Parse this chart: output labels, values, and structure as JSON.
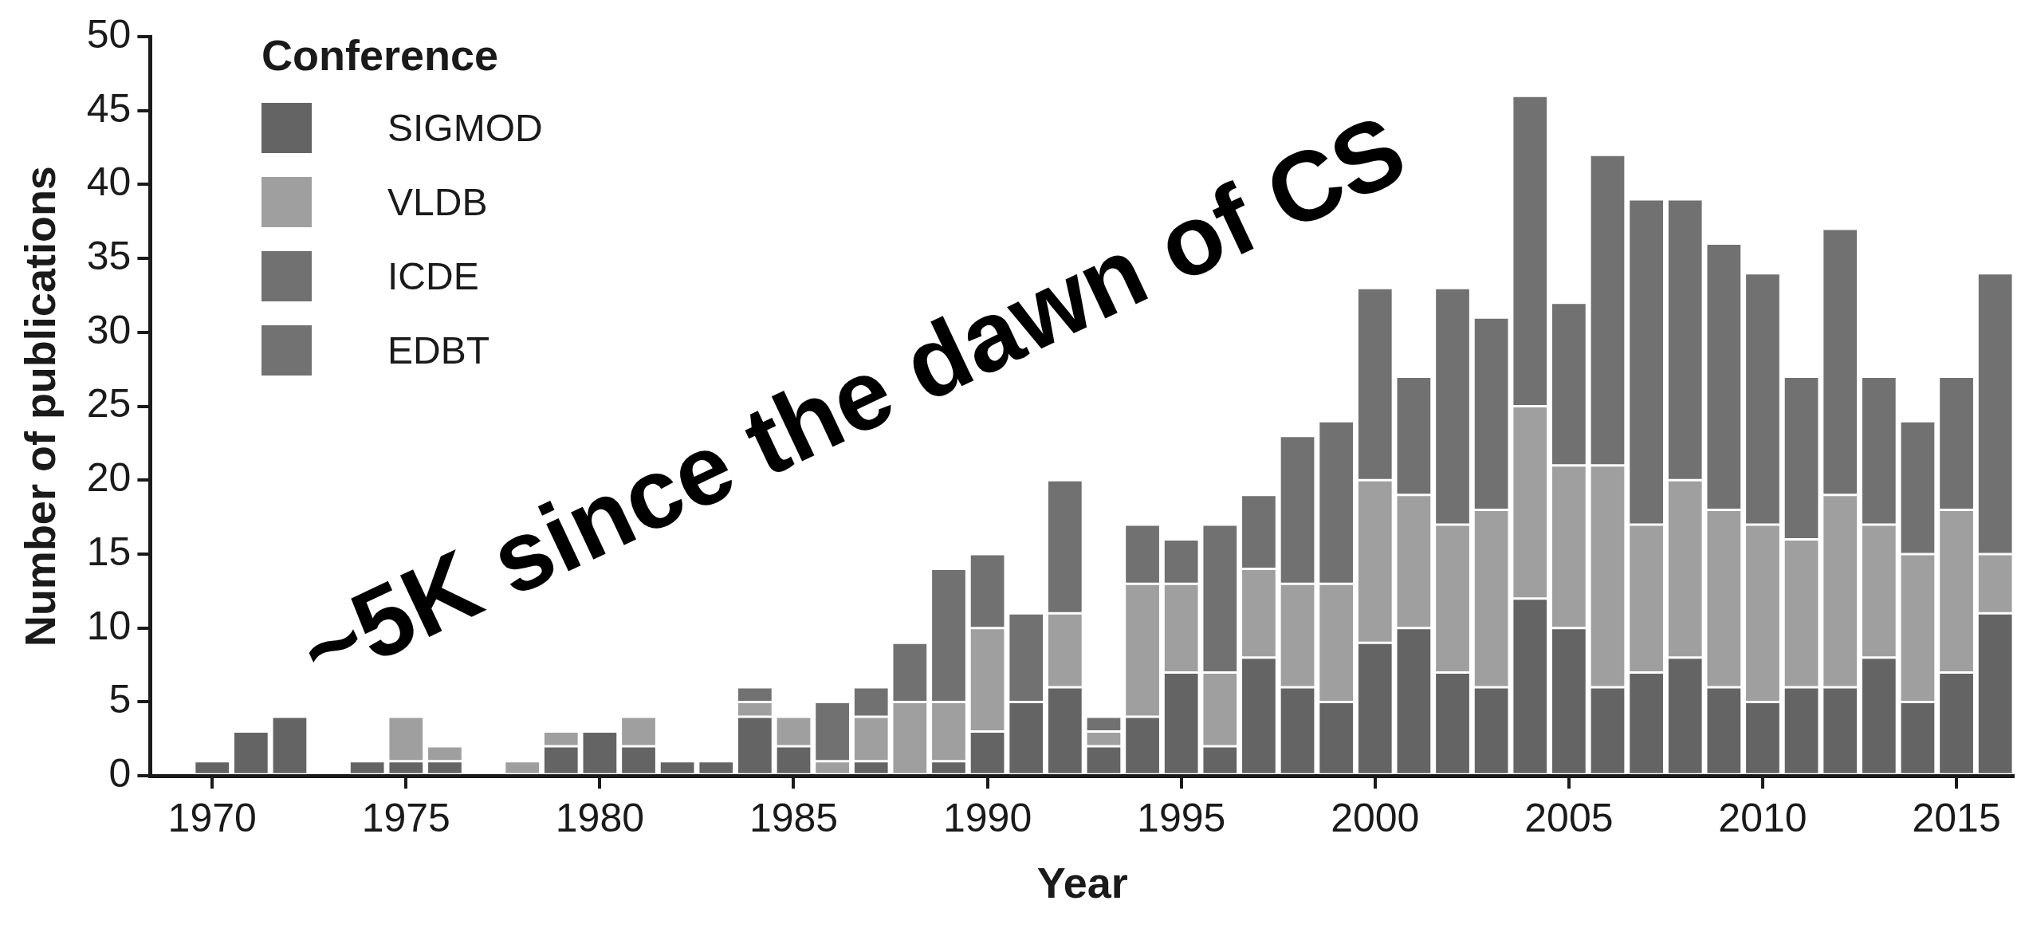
{
  "chart_data": {
    "type": "bar",
    "stacked": true,
    "xlabel": "Year",
    "ylabel": "Number of publications",
    "legend_title": "Conference",
    "legend": "top left",
    "grid": false,
    "x": [
      1970,
      1971,
      1972,
      1973,
      1974,
      1975,
      1976,
      1977,
      1978,
      1979,
      1980,
      1981,
      1982,
      1983,
      1984,
      1985,
      1986,
      1987,
      1988,
      1989,
      1990,
      1991,
      1992,
      1993,
      1994,
      1995,
      1996,
      1997,
      1998,
      1999,
      2000,
      2001,
      2002,
      2003,
      2004,
      2005,
      2006,
      2007,
      2008,
      2009,
      2010,
      2011,
      2012,
      2013,
      2014,
      2015,
      2016
    ],
    "xlim": [
      1968.4,
      2016.5
    ],
    "xticks": [
      1970,
      1975,
      1980,
      1985,
      1990,
      1995,
      2000,
      2005,
      2010,
      2015
    ],
    "ylim": [
      0,
      50
    ],
    "yticks": [
      0,
      5,
      10,
      15,
      20,
      25,
      30,
      35,
      40,
      45,
      50
    ],
    "series": [
      {
        "name": "SIGMOD",
        "color": "#646464",
        "values": [
          1,
          3,
          4,
          0,
          1,
          1,
          1,
          0,
          0,
          2,
          3,
          2,
          1,
          1,
          4,
          2,
          0,
          1,
          0,
          1,
          3,
          5,
          6,
          2,
          4,
          7,
          2,
          8,
          6,
          5,
          9,
          10,
          7,
          6,
          12,
          10,
          6,
          7,
          8,
          6,
          5,
          6,
          6,
          8,
          5,
          7,
          11
        ]
      },
      {
        "name": "VLDB",
        "color": "#9f9f9f",
        "values": [
          0,
          0,
          0,
          0,
          0,
          3,
          1,
          0,
          1,
          1,
          0,
          2,
          0,
          0,
          1,
          2,
          1,
          3,
          5,
          4,
          7,
          0,
          5,
          1,
          9,
          6,
          5,
          6,
          7,
          8,
          11,
          9,
          10,
          12,
          13,
          11,
          15,
          10,
          12,
          12,
          12,
          10,
          13,
          9,
          10,
          11,
          4
        ]
      },
      {
        "name": "ICDE",
        "color": "#717171",
        "values": [
          0,
          0,
          0,
          0,
          0,
          0,
          0,
          0,
          0,
          0,
          0,
          0,
          0,
          0,
          1,
          0,
          4,
          2,
          4,
          9,
          5,
          6,
          9,
          1,
          4,
          3,
          10,
          5,
          10,
          11,
          13,
          8,
          16,
          13,
          21,
          11,
          21,
          22,
          19,
          18,
          17,
          11,
          18,
          10,
          9,
          9,
          19
        ]
      },
      {
        "name": "EDBT",
        "color": "#727272",
        "values": [
          null,
          null,
          null,
          null,
          null,
          null,
          null,
          null,
          null,
          null,
          null,
          null,
          null,
          null,
          null,
          null,
          null,
          null,
          null,
          null,
          null,
          null,
          null,
          null,
          null,
          null,
          null,
          null,
          null,
          null,
          null,
          null,
          null,
          null,
          null,
          null,
          null,
          null,
          null,
          null,
          null,
          null,
          null,
          null,
          null,
          null,
          null
        ]
      }
    ],
    "annotations": [
      "~5K since the dawn of CS"
    ]
  }
}
